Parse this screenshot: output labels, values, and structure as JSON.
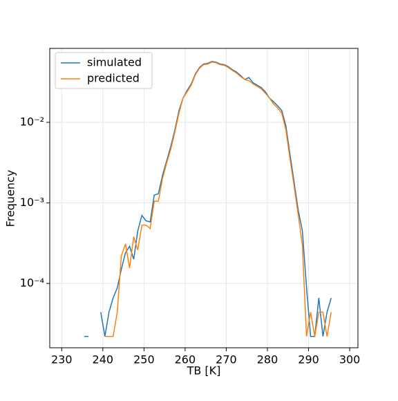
{
  "chart_data": {
    "type": "line",
    "xlabel": "TB [K]",
    "ylabel": "Frequency",
    "x": [
      235.5,
      236.5,
      237.5,
      238.5,
      239.5,
      240.5,
      241.5,
      242.5,
      243.5,
      244.5,
      245.5,
      246.5,
      247.5,
      248.5,
      249.5,
      250.5,
      251.5,
      252.5,
      253.5,
      254.5,
      255.5,
      256.5,
      257.5,
      258.5,
      259.5,
      260.5,
      261.5,
      262.5,
      263.5,
      264.5,
      265.5,
      266.5,
      267.5,
      268.5,
      269.5,
      270.5,
      271.5,
      272.5,
      273.5,
      274.5,
      275.5,
      276.5,
      277.5,
      278.5,
      279.5,
      280.5,
      281.5,
      282.5,
      283.5,
      284.5,
      285.5,
      286.5,
      287.5,
      288.5,
      289.5,
      290.5,
      291.5,
      292.5,
      293.5,
      294.5,
      295.5
    ],
    "series": [
      {
        "name": "simulated",
        "color": "#1f77b4",
        "values": [
          2.2e-05,
          2.2e-05,
          null,
          null,
          4.4e-05,
          2.2e-05,
          4.4e-05,
          6.6e-05,
          8.8e-05,
          0.00015,
          0.00024,
          0.00029,
          0.0002,
          0.00045,
          0.0007,
          0.0006,
          0.00058,
          0.00125,
          0.0013,
          0.0022,
          0.0033,
          0.005,
          0.008,
          0.014,
          0.02,
          0.025,
          0.03,
          0.04,
          0.048,
          0.053,
          0.054,
          0.057,
          0.056,
          0.053,
          0.052,
          0.049,
          0.045,
          0.042,
          0.038,
          0.034,
          0.036,
          0.031,
          0.029,
          0.027,
          0.024,
          0.02,
          0.018,
          0.016,
          0.014,
          0.009,
          0.004,
          0.0018,
          0.0008,
          0.00045,
          9e-05,
          2.2e-05,
          2.2e-05,
          6.6e-05,
          2.2e-05,
          4.4e-05,
          6.6e-05
        ]
      },
      {
        "name": "predicted",
        "color": "#ff7f0e",
        "values": [
          null,
          null,
          null,
          2.2e-05,
          null,
          2.2e-05,
          2.2e-05,
          2.2e-05,
          4.4e-05,
          0.00022,
          0.00031,
          0.000155,
          0.00038,
          0.00026,
          0.00053,
          0.00053,
          0.00048,
          0.00105,
          0.00105,
          0.002,
          0.0031,
          0.0046,
          0.0075,
          0.013,
          0.02,
          0.024,
          0.029,
          0.039,
          0.047,
          0.052,
          0.053,
          0.056,
          0.055,
          0.052,
          0.051,
          0.048,
          0.044,
          0.041,
          0.037,
          0.034,
          0.033,
          0.03,
          0.028,
          0.026,
          0.023,
          0.02,
          0.017,
          0.015,
          0.013,
          0.008,
          0.0035,
          0.0016,
          0.0007,
          0.0003,
          2.2e-05,
          4.4e-05,
          2.2e-05,
          4.4e-05,
          4.4e-05,
          2.2e-05,
          4.4e-05
        ]
      }
    ],
    "xlim": [
      227.1,
      302
    ],
    "xticks": [
      230,
      240,
      250,
      260,
      270,
      280,
      290,
      300
    ],
    "ylim": [
      1.59e-05,
      0.0828
    ],
    "log_y": true,
    "yticks": [
      {
        "value": 0.0001,
        "label": "10⁻⁴"
      },
      {
        "value": 0.001,
        "label": "10⁻³"
      },
      {
        "value": 0.01,
        "label": "10⁻²"
      }
    ],
    "grid": true,
    "legend": "upper left"
  }
}
